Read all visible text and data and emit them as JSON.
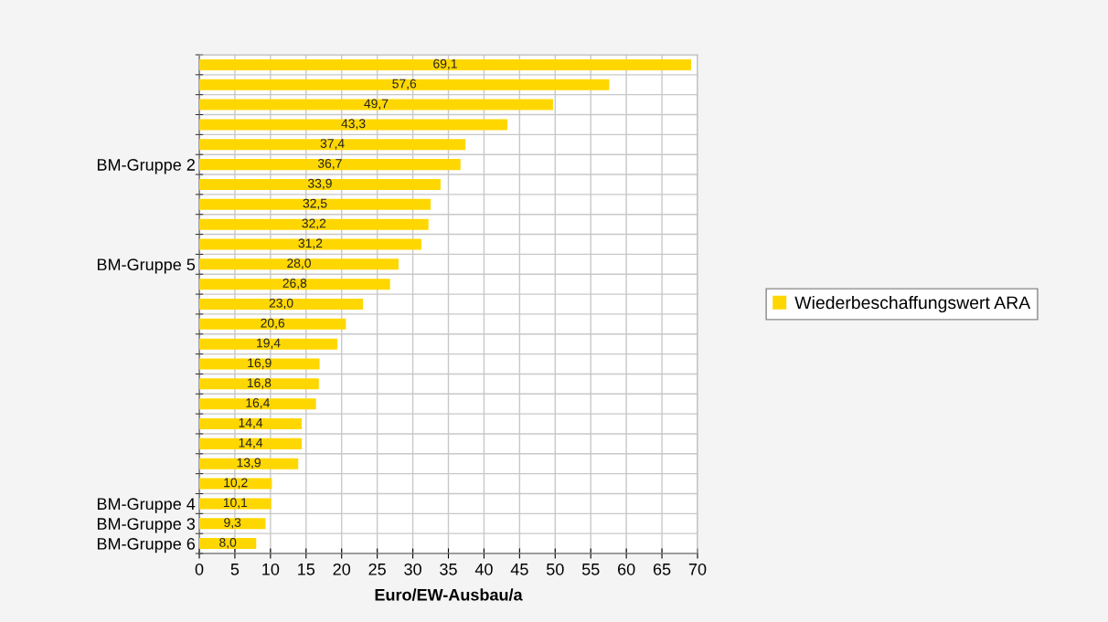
{
  "chart_data": {
    "type": "bar",
    "orientation": "horizontal",
    "xlabel": "Euro/EW-Ausbau/a",
    "categories": [
      null,
      null,
      null,
      null,
      null,
      "BM-Gruppe 2",
      null,
      null,
      null,
      null,
      "BM-Gruppe 5",
      null,
      null,
      null,
      null,
      null,
      null,
      null,
      null,
      null,
      null,
      null,
      "BM-Gruppe 4",
      "BM-Gruppe 3",
      "BM-Gruppe 6"
    ],
    "series": [
      {
        "name": "Wiederbeschaffungswert ARA",
        "color": "#ffd700",
        "values": [
          69.1,
          57.6,
          49.7,
          43.3,
          37.4,
          36.7,
          33.9,
          32.5,
          32.2,
          31.2,
          28.0,
          26.8,
          23.0,
          20.6,
          19.4,
          16.9,
          16.8,
          16.4,
          14.4,
          14.4,
          13.9,
          10.2,
          10.1,
          9.3,
          8.0
        ],
        "value_labels": [
          "69,1",
          "57,6",
          "49,7",
          "43,3",
          "37,4",
          "36,7",
          "33,9",
          "32,5",
          "32,2",
          "31,2",
          "28,0",
          "26,8",
          "23,0",
          "20,6",
          "19,4",
          "16,9",
          "16,8",
          "16,4",
          "14,4",
          "14,4",
          "13,9",
          "10,2",
          "10,1",
          "9,3",
          "8,0"
        ]
      }
    ],
    "xlim": [
      0,
      70
    ],
    "xticks": [
      0,
      5,
      10,
      15,
      20,
      25,
      30,
      35,
      40,
      45,
      50,
      55,
      60,
      65,
      70
    ],
    "grid": true,
    "legend": "right"
  }
}
